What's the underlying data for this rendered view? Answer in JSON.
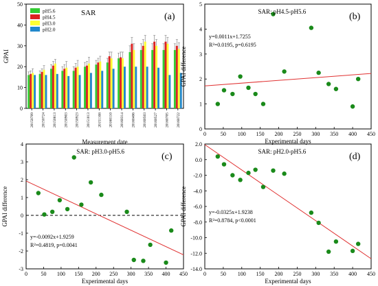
{
  "chart_data": [
    {
      "type": "bar",
      "panel_label": "(a)",
      "title": "SAR",
      "xlabel": "Measurement date",
      "ylabel": "GPAI",
      "ylim": [
        0,
        50
      ],
      "yticks": [
        0,
        10,
        20,
        30,
        40,
        50
      ],
      "legend_position": "top-left",
      "categories": [
        "20150709",
        "20150724",
        "20150813",
        "20150903",
        "20150923",
        "20151013",
        "20151108",
        "20160110",
        "20160314",
        "20160406",
        "20160503",
        "20160527",
        "20160705",
        "20160722"
      ],
      "series": [
        {
          "name": "pH5.6",
          "color": "#33cc33",
          "values": [
            16,
            16.5,
            19,
            18,
            18,
            20,
            21,
            22,
            24,
            27,
            28,
            28,
            28,
            28
          ],
          "errors": [
            1.5,
            1.5,
            2,
            2,
            2,
            2,
            2,
            2,
            2.5,
            3,
            3,
            3,
            3,
            3
          ]
        },
        {
          "name": "pH4.5",
          "color": "#dd2222",
          "values": [
            16.5,
            17.5,
            20.5,
            19,
            19.5,
            20.5,
            22,
            25,
            24.5,
            31,
            30,
            32,
            32,
            30
          ],
          "errors": [
            1.5,
            1.5,
            2,
            2,
            2,
            2,
            2,
            2,
            2.5,
            3,
            3,
            3,
            3,
            3
          ]
        },
        {
          "name": "pH3.0",
          "color": "#ffff33",
          "values": [
            17,
            18.5,
            21.5,
            19.5,
            20,
            21.5,
            22.5,
            24,
            24,
            28,
            32,
            30,
            31,
            28.5
          ],
          "errors": [
            2,
            2,
            2,
            3,
            3,
            3,
            2.5,
            3,
            3,
            3,
            3,
            3,
            3,
            3
          ]
        },
        {
          "name": "pH2.0",
          "color": "#2288cc",
          "values": [
            16,
            16,
            16.5,
            15.5,
            16,
            17,
            18,
            19,
            20,
            20,
            20,
            19.5,
            16,
            17
          ],
          "errors": [
            0,
            0,
            0,
            0,
            0,
            0,
            0,
            0,
            0,
            0,
            0,
            0,
            0,
            0
          ]
        }
      ]
    },
    {
      "type": "scatter",
      "panel_label": "(b)",
      "title": "SAR: pH4.5-pH5.6",
      "xlabel": "Experimental days",
      "ylabel": "GPAI difference",
      "xlim": [
        0,
        450
      ],
      "ylim": [
        0,
        5
      ],
      "xticks": [
        0,
        50,
        100,
        150,
        200,
        250,
        300,
        350,
        400,
        450
      ],
      "yticks": [
        0,
        1,
        2,
        3,
        4,
        5
      ],
      "equation": "y=0.0011x+1.7255",
      "stats": "R²=0.0195, p=0.6195",
      "fit": {
        "slope": 0.0011,
        "intercept": 1.7255
      },
      "points": [
        [
          35,
          1.0
        ],
        [
          52,
          1.55
        ],
        [
          75,
          1.4
        ],
        [
          96,
          2.1
        ],
        [
          118,
          1.65
        ],
        [
          137,
          1.4
        ],
        [
          158,
          1.0
        ],
        [
          185,
          4.6
        ],
        [
          215,
          2.3
        ],
        [
          288,
          4.05
        ],
        [
          308,
          2.25
        ],
        [
          335,
          1.8
        ],
        [
          355,
          1.6
        ],
        [
          400,
          0.9
        ],
        [
          415,
          2.0
        ]
      ]
    },
    {
      "type": "scatter",
      "panel_label": "(c)",
      "title": "SAR: pH3.0-pH5.6",
      "xlabel": "Experimental days",
      "ylabel": "GPAI difference",
      "xlim": [
        0,
        450
      ],
      "ylim": [
        -3,
        4
      ],
      "xticks": [
        0,
        50,
        100,
        150,
        200,
        250,
        300,
        350,
        400,
        450
      ],
      "yticks": [
        -3,
        -2,
        -1,
        0,
        1,
        2,
        3,
        4
      ],
      "equation": "y=-0.0092x+1.9259",
      "stats": "R²=0.4819, p=0.0041",
      "fit": {
        "slope": -0.0092,
        "intercept": 1.9259
      },
      "reference_line_y": 0,
      "points": [
        [
          35,
          1.25
        ],
        [
          52,
          0.05
        ],
        [
          75,
          0.2
        ],
        [
          96,
          0.85
        ],
        [
          118,
          0.35
        ],
        [
          137,
          3.25
        ],
        [
          158,
          0.6
        ],
        [
          185,
          1.85
        ],
        [
          215,
          1.15
        ],
        [
          288,
          0.2
        ],
        [
          308,
          -2.5
        ],
        [
          335,
          -2.55
        ],
        [
          355,
          -1.65
        ],
        [
          400,
          -2.65
        ],
        [
          415,
          -0.85
        ]
      ]
    },
    {
      "type": "scatter",
      "panel_label": "(d)",
      "title": "SAR: pH2.0-pH5.6",
      "xlabel": "Experimental days",
      "ylabel": "GPAI difference",
      "xlim": [
        0,
        450
      ],
      "ylim": [
        -14,
        2
      ],
      "xticks": [
        0,
        50,
        100,
        150,
        200,
        250,
        300,
        350,
        400,
        450
      ],
      "yticks": [
        -14,
        -12,
        -10,
        -8,
        -6,
        -4,
        -2,
        0,
        2
      ],
      "ytick_labels": [
        "-14.0",
        "-12.0",
        "-10.0",
        "-8.0",
        "-6.0",
        "-4.0",
        "-2.0",
        "0.0",
        "2.0"
      ],
      "equation": "y=-0.0325x+1.9238",
      "stats": "R²=0.8784, p<0.0001",
      "fit": {
        "slope": -0.0325,
        "intercept": 1.9238
      },
      "points": [
        [
          35,
          0.4
        ],
        [
          52,
          -0.6
        ],
        [
          75,
          -2.0
        ],
        [
          96,
          -2.6
        ],
        [
          118,
          -1.7
        ],
        [
          137,
          -1.3
        ],
        [
          158,
          -3.5
        ],
        [
          185,
          -1.4
        ],
        [
          215,
          -1.8
        ],
        [
          288,
          -6.8
        ],
        [
          308,
          -8.1
        ],
        [
          335,
          -11.8
        ],
        [
          355,
          -10.5
        ],
        [
          400,
          -11.7
        ],
        [
          415,
          -10.8
        ]
      ]
    }
  ]
}
